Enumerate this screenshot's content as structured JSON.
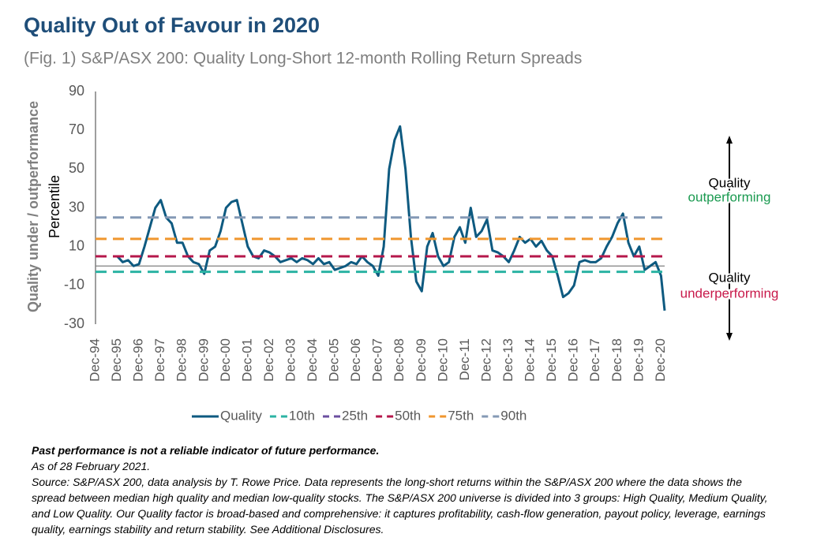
{
  "chart_data": {
    "type": "line",
    "title": "Quality Out of Favour in 2020",
    "subtitle": "(Fig. 1) S&P/ASX 200: Quality Long-Short 12-month Rolling Return Spreads",
    "y_label": "Quality under / outperformance",
    "y_label_2": "Percentile",
    "x": [
      "1995-12",
      "1996-03",
      "1996-06",
      "1996-09",
      "1996-12",
      "1997-03",
      "1997-06",
      "1997-09",
      "1997-12",
      "1998-03",
      "1998-06",
      "1998-09",
      "1998-12",
      "1999-03",
      "1999-06",
      "1999-09",
      "1999-12",
      "2000-03",
      "2000-06",
      "2000-09",
      "2000-12",
      "2001-03",
      "2001-06",
      "2001-09",
      "2001-12",
      "2002-03",
      "2002-06",
      "2002-09",
      "2002-12",
      "2003-03",
      "2003-06",
      "2003-09",
      "2003-12",
      "2004-03",
      "2004-06",
      "2004-09",
      "2004-12",
      "2005-03",
      "2005-06",
      "2005-09",
      "2005-12",
      "2006-03",
      "2006-06",
      "2006-09",
      "2006-12",
      "2007-03",
      "2007-06",
      "2007-09",
      "2007-12",
      "2008-03",
      "2008-06",
      "2008-09",
      "2008-12",
      "2009-03",
      "2009-06",
      "2009-09",
      "2009-12",
      "2010-03",
      "2010-06",
      "2010-09",
      "2010-12",
      "2011-03",
      "2011-06",
      "2011-09",
      "2011-12",
      "2012-03",
      "2012-06",
      "2012-09",
      "2012-12",
      "2013-03",
      "2013-06",
      "2013-09",
      "2013-12",
      "2014-03",
      "2014-06",
      "2014-09",
      "2014-12",
      "2015-03",
      "2015-06",
      "2015-09",
      "2015-12",
      "2016-03",
      "2016-06",
      "2016-09",
      "2016-12",
      "2017-03",
      "2017-06",
      "2017-09",
      "2017-12",
      "2018-03",
      "2018-06",
      "2018-09",
      "2018-12",
      "2019-03",
      "2019-06",
      "2019-09",
      "2019-12",
      "2020-03",
      "2020-06",
      "2020-09",
      "2020-12",
      "2021-02"
    ],
    "series": [
      {
        "name": "Quality",
        "color": "#0e5a80",
        "values": [
          5,
          2,
          3,
          0,
          1,
          10,
          20,
          30,
          34,
          25,
          22,
          12,
          12,
          5,
          2,
          1,
          -4,
          8,
          10,
          18,
          30,
          33,
          34,
          22,
          10,
          5,
          4,
          8,
          7,
          5,
          2,
          3,
          4,
          2,
          4,
          3,
          1,
          4,
          1,
          2,
          -2,
          -1,
          0,
          2,
          1,
          5,
          2,
          0,
          -5,
          10,
          50,
          65,
          72,
          50,
          15,
          -8,
          -13,
          10,
          17,
          5,
          0,
          2,
          15,
          20,
          12,
          30,
          15,
          18,
          24,
          8,
          7,
          5,
          2,
          8,
          15,
          12,
          14,
          10,
          13,
          8,
          5,
          -5,
          -16,
          -14,
          -10,
          2,
          3,
          2,
          2,
          4,
          10,
          15,
          22,
          27,
          12,
          5,
          10,
          -2,
          0,
          2,
          -5,
          -23
        ]
      },
      {
        "name": "10th",
        "color": "#2bb3a3",
        "value": -3,
        "dashed": true
      },
      {
        "name": "25th",
        "color": "#6b4fa0",
        "value": null,
        "dashed": true
      },
      {
        "name": "50th",
        "color": "#b5174b",
        "value": 5,
        "dashed": true
      },
      {
        "name": "75th",
        "color": "#f0962e",
        "value": 14,
        "dashed": true
      },
      {
        "name": "90th",
        "color": "#8499b5",
        "value": 25,
        "dashed": true
      }
    ],
    "xlim": [
      "1994-12",
      "2021-02"
    ],
    "xticks": [
      {
        "value": "1994-12",
        "label": "Dec-94"
      },
      {
        "value": "1995-12",
        "label": "Dec-95"
      },
      {
        "value": "1996-12",
        "label": "Dec-96"
      },
      {
        "value": "1997-12",
        "label": "Dec-97"
      },
      {
        "value": "1998-12",
        "label": "Dec-98"
      },
      {
        "value": "1999-12",
        "label": "Dec-99"
      },
      {
        "value": "2000-12",
        "label": "Dec-00"
      },
      {
        "value": "2001-12",
        "label": "Dec-01"
      },
      {
        "value": "2002-12",
        "label": "Dec-02"
      },
      {
        "value": "2003-12",
        "label": "Dec-03"
      },
      {
        "value": "2004-12",
        "label": "Dec-04"
      },
      {
        "value": "2005-12",
        "label": "Dec-05"
      },
      {
        "value": "2006-12",
        "label": "Dec-06"
      },
      {
        "value": "2007-12",
        "label": "Dec-07"
      },
      {
        "value": "2008-12",
        "label": "Dec-08"
      },
      {
        "value": "2009-12",
        "label": "Dec-09"
      },
      {
        "value": "2010-12",
        "label": "Dec-10"
      },
      {
        "value": "2011-12",
        "label": "Dec-11"
      },
      {
        "value": "2012-12",
        "label": "Dec-12"
      },
      {
        "value": "2013-12",
        "label": "Dec-13"
      },
      {
        "value": "2014-12",
        "label": "Dec-14"
      },
      {
        "value": "2015-12",
        "label": "Dec-15"
      },
      {
        "value": "2016-12",
        "label": "Dec-16"
      },
      {
        "value": "2017-12",
        "label": "Dec-17"
      },
      {
        "value": "2018-12",
        "label": "Dec-18"
      },
      {
        "value": "2019-12",
        "label": "Dec-19"
      },
      {
        "value": "2020-12",
        "label": "Dec-20"
      }
    ],
    "ylim": [
      -30,
      90
    ],
    "yticks": [
      90,
      70,
      50,
      30,
      10,
      -10,
      -30
    ],
    "grid": false,
    "annotations": [
      {
        "text": "Quality",
        "color": "#000000"
      },
      {
        "text": "outperforming",
        "color": "#1a9a50"
      },
      {
        "text": "Quality",
        "color": "#000000"
      },
      {
        "text": "underperforming",
        "color": "#c8194a"
      }
    ],
    "notes": [
      "Past performance is not a reliable indicator of future performance.",
      "As of 28 February 2021.",
      "Source: S&P/ASX 200, data analysis by T. Rowe Price. Data represents the long-short returns within the S&P/ASX 200 where the data shows the spread between median high quality and median low-quality stocks. The S&P/ASX 200 universe is divided into 3 groups: High Quality, Medium Quality, and Low Quality. Our Quality factor is broad-based and comprehensive: it captures profitability, cash-flow generation, payout policy, leverage, earnings quality, earnings stability and return stability. See Additional Disclosures."
    ]
  }
}
